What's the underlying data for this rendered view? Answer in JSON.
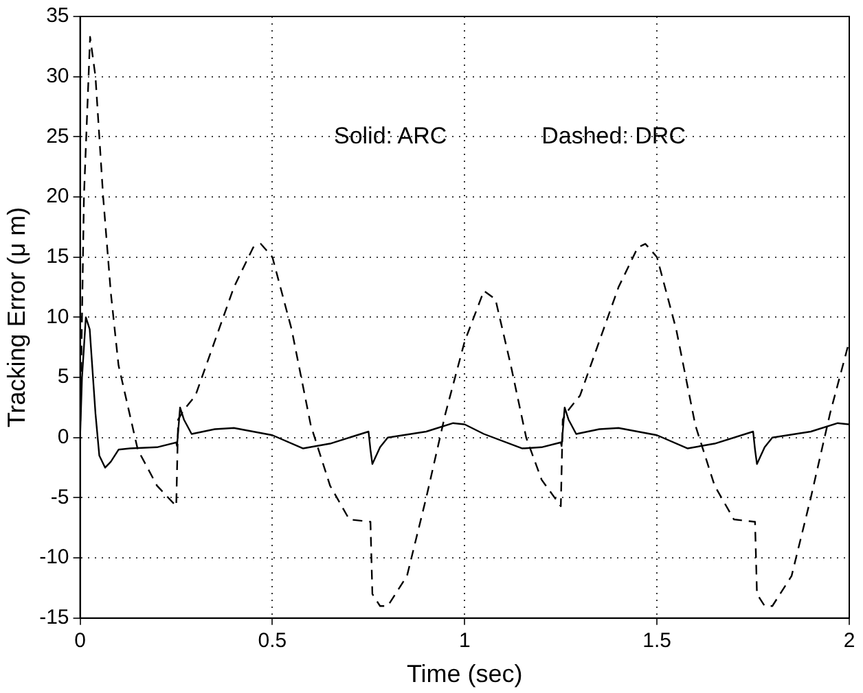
{
  "chart_data": {
    "type": "line",
    "xlabel": "Time (sec)",
    "ylabel": "Tracking Error (μ m)",
    "annotations": [
      "Solid: ARC",
      "Dashed: DRC"
    ],
    "xlim": [
      0,
      2
    ],
    "xticks": [
      0,
      0.5,
      1,
      1.5,
      2
    ],
    "ylim": [
      -15,
      35
    ],
    "yticks": [
      -15,
      -10,
      -5,
      0,
      5,
      10,
      15,
      20,
      25,
      30,
      35
    ],
    "grid": true,
    "legend": false,
    "series": [
      {
        "color": "#000000",
        "line_style": "solid",
        "x": [
          0,
          0.005,
          0.015,
          0.025,
          0.04,
          0.05,
          0.065,
          0.08,
          0.1,
          0.13,
          0.2,
          0.25,
          0.252,
          0.26,
          0.27,
          0.29,
          0.35,
          0.4,
          0.5,
          0.58,
          0.65,
          0.74,
          0.75,
          0.755,
          0.76,
          0.78,
          0.8,
          0.9,
          0.97,
          1.0,
          1.05,
          1.15,
          1.2,
          1.25,
          1.252,
          1.26,
          1.27,
          1.29,
          1.35,
          1.4,
          1.5,
          1.58,
          1.65,
          1.74,
          1.75,
          1.755,
          1.76,
          1.78,
          1.8,
          1.9,
          1.97,
          2.0
        ],
        "values": [
          0,
          5,
          10,
          9,
          2,
          -1.5,
          -2.5,
          -2,
          -1,
          -0.9,
          -0.8,
          -0.4,
          -0.7,
          2.5,
          1.5,
          0.3,
          0.7,
          0.8,
          0.2,
          -0.9,
          -0.5,
          0.4,
          0.5,
          -1,
          -2.2,
          -0.8,
          0,
          0.5,
          1.2,
          1.1,
          0.3,
          -0.9,
          -0.8,
          -0.4,
          -0.7,
          2.5,
          1.5,
          0.3,
          0.7,
          0.8,
          0.2,
          -0.9,
          -0.5,
          0.4,
          0.5,
          -1,
          -2.2,
          -0.8,
          0,
          0.5,
          1.2,
          1.1
        ]
      },
      {
        "color": "#000000",
        "line_style": "dashed",
        "x": [
          0,
          0.01,
          0.026,
          0.04,
          0.06,
          0.08,
          0.1,
          0.15,
          0.2,
          0.25,
          0.255,
          0.27,
          0.3,
          0.35,
          0.4,
          0.45,
          0.47,
          0.5,
          0.55,
          0.6,
          0.65,
          0.7,
          0.755,
          0.76,
          0.78,
          0.8,
          0.85,
          0.9,
          0.95,
          1.0,
          1.05,
          1.08,
          1.12,
          1.16,
          1.2,
          1.25,
          1.255,
          1.27,
          1.3,
          1.35,
          1.4,
          1.45,
          1.47,
          1.5,
          1.55,
          1.6,
          1.65,
          1.7,
          1.755,
          1.76,
          1.78,
          1.8,
          1.85,
          1.9,
          1.95,
          2.0
        ],
        "values": [
          0,
          20,
          33.3,
          30,
          20,
          12,
          6,
          -1,
          -4,
          -5.7,
          1.5,
          2.3,
          3.5,
          8,
          12.5,
          15.8,
          16.1,
          15,
          9,
          1,
          -4,
          -6.8,
          -7,
          -13,
          -14,
          -14,
          -11.5,
          -5,
          2,
          8,
          12.2,
          11.5,
          6,
          0,
          -3.5,
          -5.7,
          1.5,
          2.3,
          3.5,
          8,
          12.5,
          15.8,
          16.1,
          15,
          9,
          1,
          -4,
          -6.8,
          -7,
          -13,
          -14,
          -14,
          -11.5,
          -5,
          2,
          8
        ]
      }
    ]
  }
}
